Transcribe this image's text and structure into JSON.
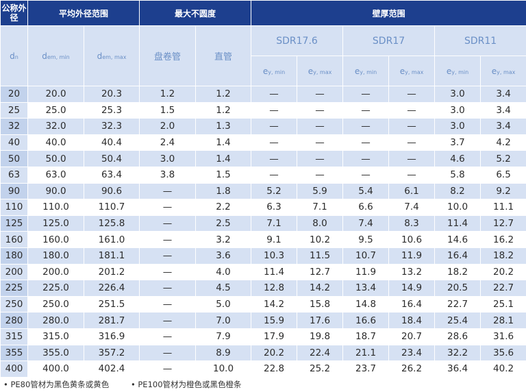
{
  "header": {
    "nominal": "公称外径",
    "mean_od": "平均外径范围",
    "max_ovality": "最大不圆度",
    "wall_range": "壁厚范围",
    "dn": "dn",
    "dem_min": "dem, min",
    "dem_max": "dem, max",
    "coil": "盘卷管",
    "straight": "直管",
    "sdr176": "SDR17.6",
    "sdr17": "SDR17",
    "sdr11": "SDR11",
    "ey_min": "ey, min",
    "ey_max": "ey, max"
  },
  "rows": [
    [
      "20",
      "20.0",
      "20.3",
      "1.2",
      "1.2",
      "—",
      "—",
      "—",
      "—",
      "3.0",
      "3.4"
    ],
    [
      "25",
      "25.0",
      "25.3",
      "1.5",
      "1.2",
      "—",
      "—",
      "—",
      "—",
      "3.0",
      "3.4"
    ],
    [
      "32",
      "32.0",
      "32.3",
      "2.0",
      "1.3",
      "—",
      "—",
      "—",
      "—",
      "3.0",
      "3.4"
    ],
    [
      "40",
      "40.0",
      "40.4",
      "2.4",
      "1.4",
      "—",
      "—",
      "—",
      "—",
      "3.7",
      "4.2"
    ],
    [
      "50",
      "50.0",
      "50.4",
      "3.0",
      "1.4",
      "—",
      "—",
      "—",
      "—",
      "4.6",
      "5.2"
    ],
    [
      "63",
      "63.0",
      "63.4",
      "3.8",
      "1.5",
      "—",
      "—",
      "—",
      "—",
      "5.8",
      "6.5"
    ],
    [
      "90",
      "90.0",
      "90.6",
      "—",
      "1.8",
      "5.2",
      "5.9",
      "5.4",
      "6.1",
      "8.2",
      "9.2"
    ],
    [
      "110",
      "110.0",
      "110.7",
      "—",
      "2.2",
      "6.3",
      "7.1",
      "6.6",
      "7.4",
      "10.0",
      "11.1"
    ],
    [
      "125",
      "125.0",
      "125.8",
      "—",
      "2.5",
      "7.1",
      "8.0",
      "7.4",
      "8.3",
      "11.4",
      "12.7"
    ],
    [
      "160",
      "160.0",
      "161.0",
      "—",
      "3.2",
      "9.1",
      "10.2",
      "9.5",
      "10.6",
      "14.6",
      "16.2"
    ],
    [
      "180",
      "180.0",
      "181.1",
      "—",
      "3.6",
      "10.3",
      "11.5",
      "10.7",
      "11.9",
      "16.4",
      "18.2"
    ],
    [
      "200",
      "200.0",
      "201.2",
      "—",
      "4.0",
      "11.4",
      "12.7",
      "11.9",
      "13.2",
      "18.2",
      "20.2"
    ],
    [
      "225",
      "225.0",
      "226.4",
      "—",
      "4.5",
      "12.8",
      "14.2",
      "13.4",
      "14.9",
      "20.5",
      "22.7"
    ],
    [
      "250",
      "250.0",
      "251.5",
      "—",
      "5.0",
      "14.2",
      "15.8",
      "14.8",
      "16.4",
      "22.7",
      "25.1"
    ],
    [
      "280",
      "280.0",
      "281.7",
      "—",
      "7.0",
      "15.9",
      "17.6",
      "16.6",
      "18.4",
      "25.4",
      "28.1"
    ],
    [
      "315",
      "315.0",
      "316.9",
      "—",
      "7.9",
      "17.9",
      "19.8",
      "18.7",
      "20.7",
      "28.6",
      "31.6"
    ],
    [
      "355",
      "355.0",
      "357.2",
      "—",
      "8.9",
      "20.2",
      "22.4",
      "21.1",
      "23.4",
      "32.2",
      "35.6"
    ],
    [
      "400",
      "400.0",
      "402.4",
      "—",
      "10.0",
      "22.8",
      "25.2",
      "23.7",
      "26.2",
      "36.4",
      "40.2"
    ]
  ],
  "footnotes": [
    "• PE80管材为黑色黄条或黄色",
    "• PE100管材为橙色或黑色橙条"
  ]
}
